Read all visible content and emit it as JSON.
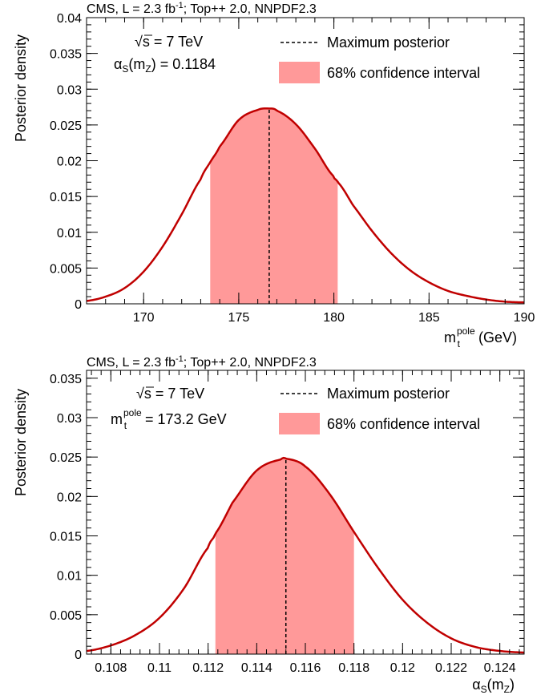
{
  "chart_data": [
    {
      "type": "area",
      "header": {
        "pre": "CMS, L = 2.3 fb",
        "sup": "-1",
        "post": "; Top++ 2.0, NNPDF2.3"
      },
      "xlabel": {
        "main": "m",
        "sub": "t",
        "sup": "pole",
        "unit": " (GeV)"
      },
      "ylabel": "Posterior density",
      "xlim": [
        167,
        190
      ],
      "ylim": [
        0,
        0.04
      ],
      "xticks": [
        170,
        175,
        180,
        185,
        190
      ],
      "yticks": [
        0,
        0.005,
        0.01,
        0.015,
        0.02,
        0.025,
        0.03,
        0.035,
        0.04
      ],
      "ytick_labels": [
        "0",
        "0.005",
        "0.01",
        "0.015",
        "0.02",
        "0.025",
        "0.03",
        "0.035",
        "0.04"
      ],
      "x": [
        167,
        168,
        169,
        170,
        171,
        172,
        173,
        173.5,
        174,
        175,
        176,
        176.6,
        177,
        178,
        179,
        180,
        180.2,
        181,
        182,
        183,
        184,
        185,
        186,
        187,
        188,
        189,
        190
      ],
      "y": [
        0.0004,
        0.001,
        0.0022,
        0.0045,
        0.008,
        0.0125,
        0.0174,
        0.0198,
        0.022,
        0.0257,
        0.0271,
        0.0273,
        0.027,
        0.0251,
        0.0217,
        0.0178,
        0.017,
        0.0138,
        0.0102,
        0.0071,
        0.0047,
        0.003,
        0.0018,
        0.0011,
        0.0006,
        0.0003,
        0.0002
      ],
      "max_posterior_x": 176.6,
      "ci68": [
        173.5,
        180.2
      ],
      "info": {
        "line1_pre": "√",
        "line1_post": "s = 7 TeV",
        "line2_main": "α",
        "line2_sub": "S",
        "line2_mid": "(m",
        "line2_sub2": "Z",
        "line2_post": ") = 0.1184"
      },
      "legend": {
        "line_label": "Maximum posterior",
        "band_label": "68% confidence interval",
        "placement": "top-right"
      },
      "colors": {
        "curve": "#c00000",
        "band": "#ff9999",
        "marker": "#000000"
      }
    },
    {
      "type": "area",
      "header": {
        "pre": "CMS, L = 2.3 fb",
        "sup": "-1",
        "post": "; Top++ 2.0, NNPDF2.3"
      },
      "xlabel": {
        "main": "α",
        "sub": "S",
        "mid": "(m",
        "sub2": "Z",
        "post": ")"
      },
      "ylabel": "Posterior density",
      "xlim": [
        0.107,
        0.125
      ],
      "ylim": [
        0,
        0.036
      ],
      "xticks": [
        0.108,
        0.11,
        0.112,
        0.114,
        0.116,
        0.118,
        0.12,
        0.122,
        0.124
      ],
      "xtick_labels": [
        "0.108",
        "0.11",
        "0.112",
        "0.114",
        "0.116",
        "0.118",
        "0.12",
        "0.122",
        "0.124"
      ],
      "yticks": [
        0,
        0.005,
        0.01,
        0.015,
        0.02,
        0.025,
        0.03,
        0.035
      ],
      "ytick_labels": [
        "0",
        "0.005",
        "0.01",
        "0.015",
        "0.02",
        "0.025",
        "0.03",
        "0.035"
      ],
      "x": [
        0.107,
        0.108,
        0.109,
        0.11,
        0.111,
        0.112,
        0.1123,
        0.113,
        0.114,
        0.115,
        0.1152,
        0.116,
        0.117,
        0.118,
        0.119,
        0.12,
        0.121,
        0.122,
        0.123,
        0.124,
        0.125
      ],
      "y": [
        0.0004,
        0.0011,
        0.0024,
        0.0046,
        0.0083,
        0.0135,
        0.0153,
        0.0192,
        0.0233,
        0.0247,
        0.0248,
        0.0238,
        0.0203,
        0.0155,
        0.0109,
        0.0069,
        0.004,
        0.002,
        0.0009,
        0.0004,
        0.0002
      ],
      "max_posterior_x": 0.1152,
      "ci68": [
        0.1123,
        0.118
      ],
      "info": {
        "line1_pre": "√",
        "line1_post": "s = 7 TeV",
        "line2_main": "m",
        "line2_sub": "t",
        "line2_sup": "pole",
        "line2_post": " = 173.2 GeV"
      },
      "legend": {
        "line_label": "Maximum posterior",
        "band_label": "68% confidence interval",
        "placement": "top-right"
      },
      "colors": {
        "curve": "#c00000",
        "band": "#ff9999",
        "marker": "#000000"
      }
    }
  ]
}
